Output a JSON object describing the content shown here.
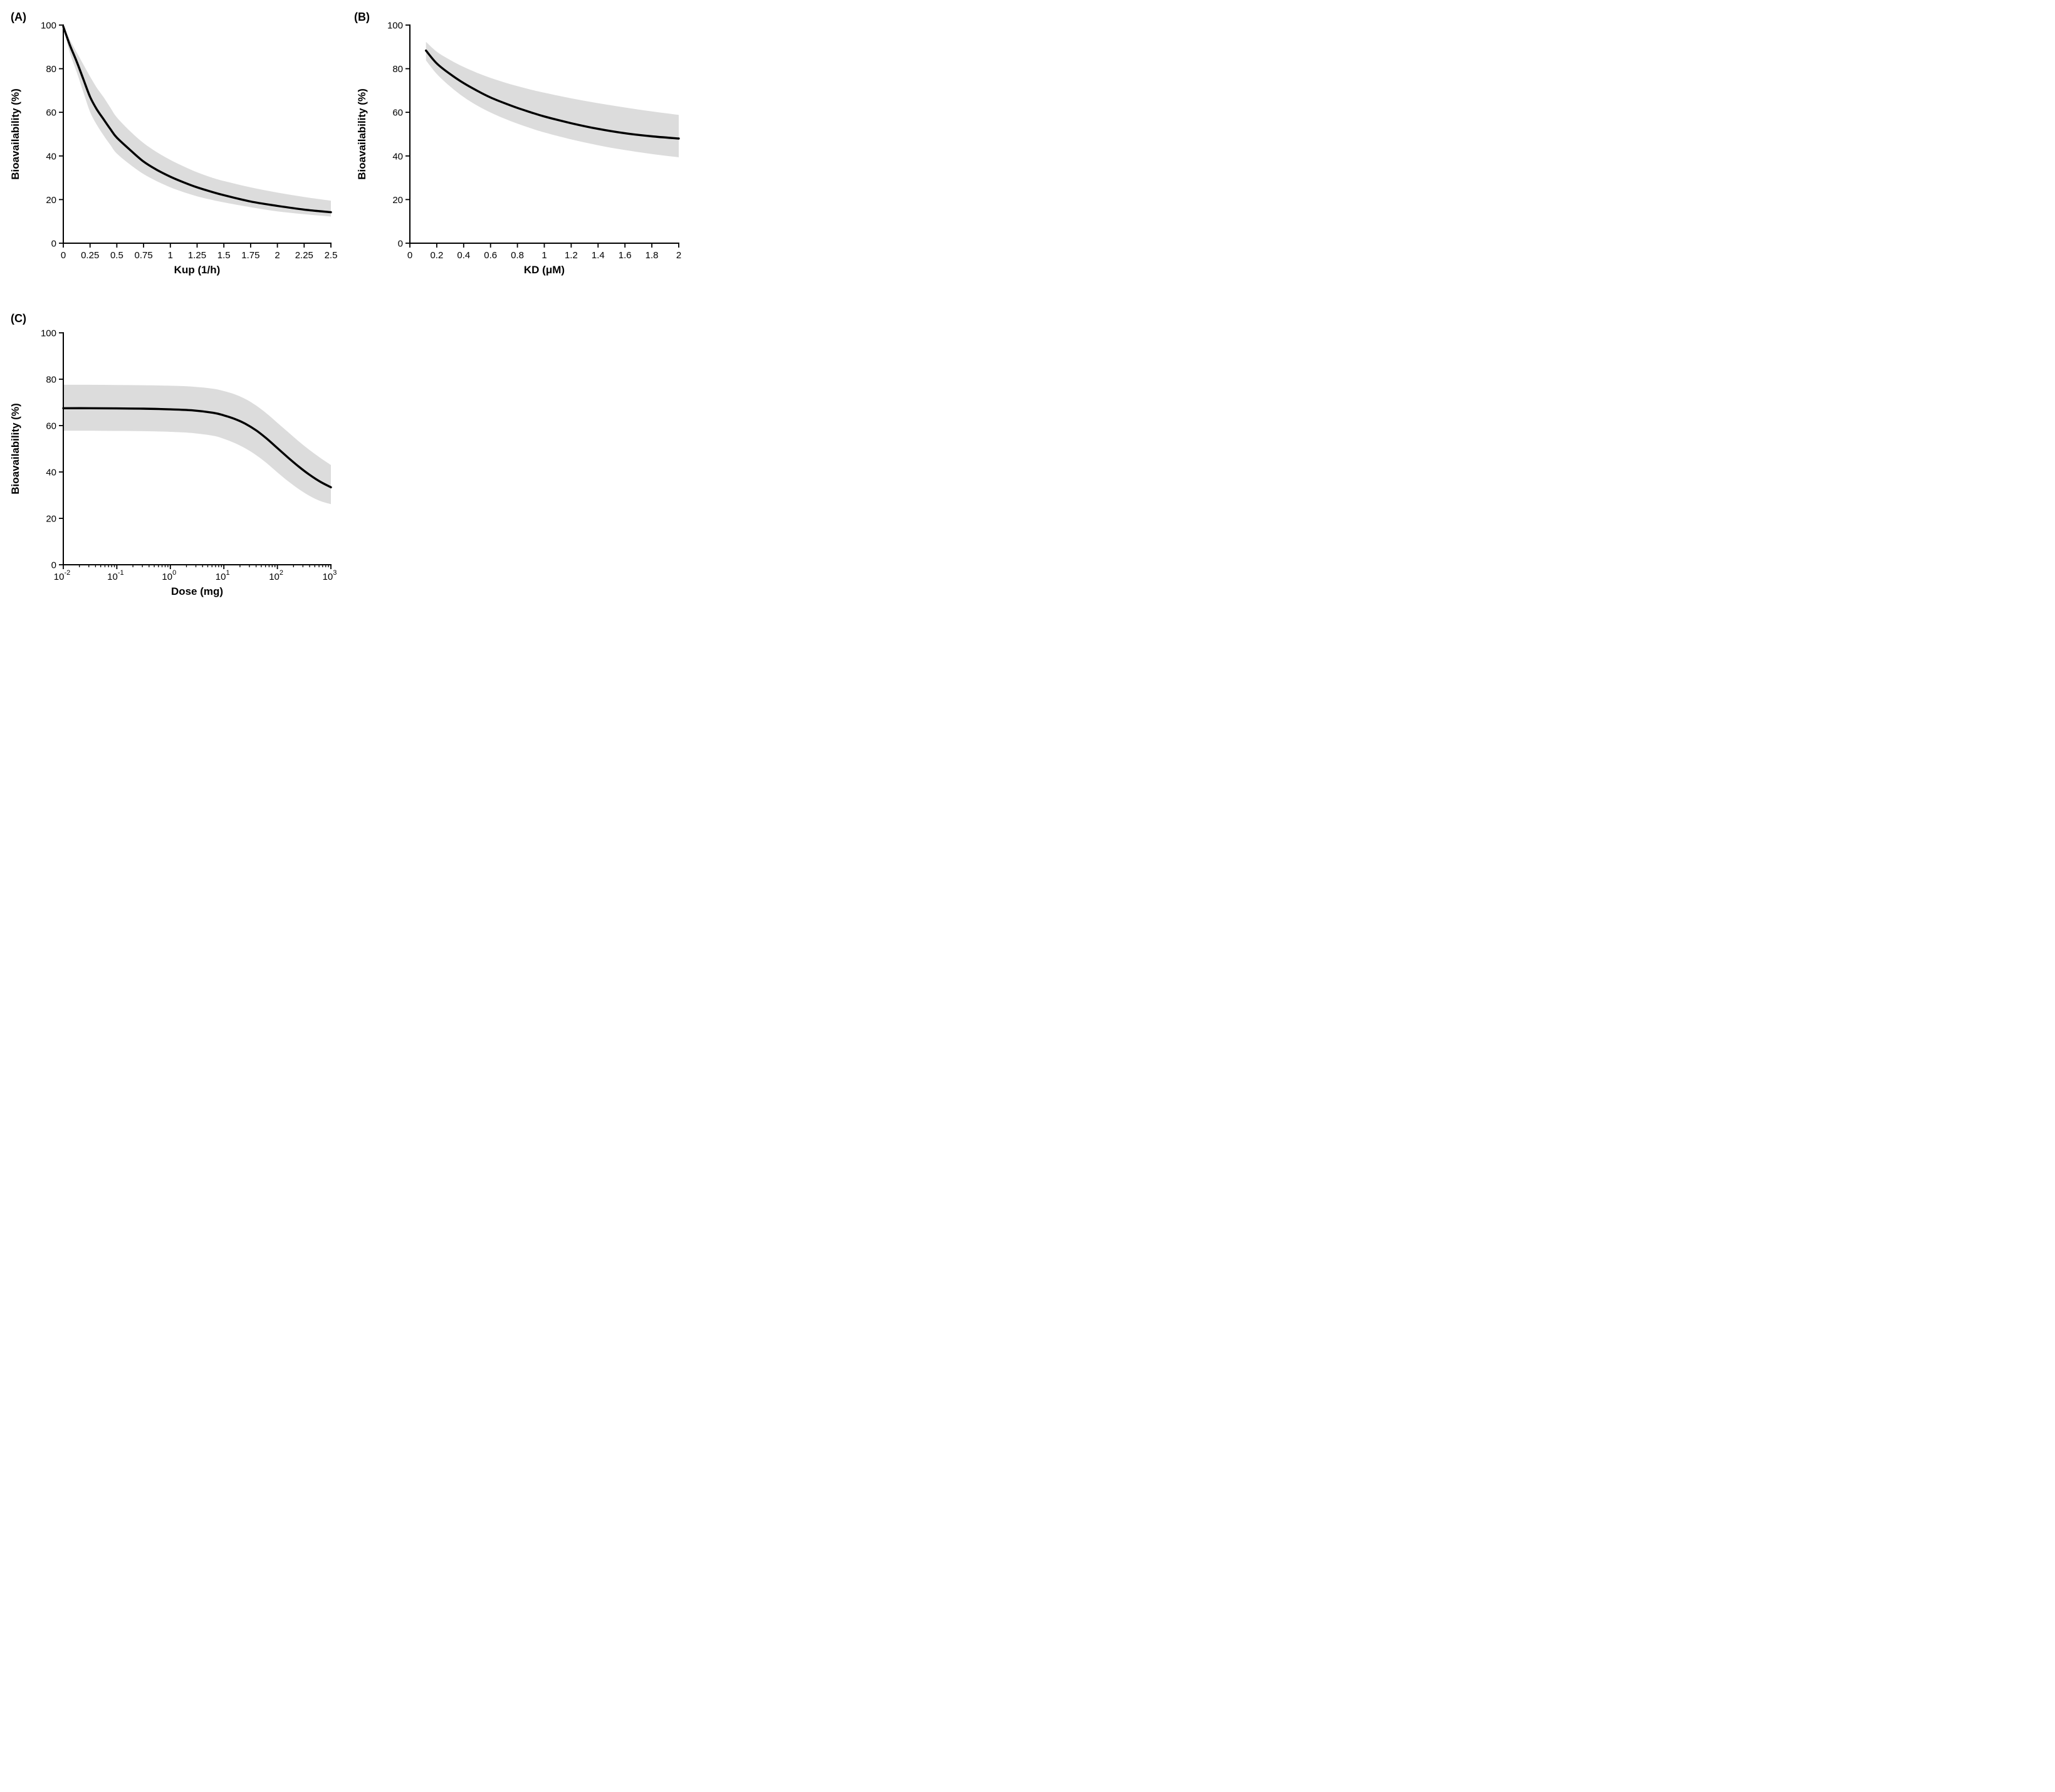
{
  "page": {
    "background": "#ffffff"
  },
  "chart_data": [
    {
      "id": "A",
      "panel_label": "(A)",
      "type": "line",
      "xlabel": "Kup (1/h)",
      "ylabel": "Bioavailability (%)",
      "xscale": "linear",
      "xlim": [
        0,
        2.5
      ],
      "ylim": [
        0,
        100
      ],
      "grid": false,
      "legend": "none",
      "line_color": "#000000",
      "band_color": "#DCDCDC",
      "xticks": [
        {
          "v": 0,
          "label": "0"
        },
        {
          "v": 0.25,
          "label": "0.25"
        },
        {
          "v": 0.5,
          "label": "0.5"
        },
        {
          "v": 0.75,
          "label": "0.75"
        },
        {
          "v": 1,
          "label": "1"
        },
        {
          "v": 1.25,
          "label": "1.25"
        },
        {
          "v": 1.5,
          "label": "1.5"
        },
        {
          "v": 1.75,
          "label": "1.75"
        },
        {
          "v": 2,
          "label": "2"
        },
        {
          "v": 2.25,
          "label": "2.25"
        },
        {
          "v": 2.5,
          "label": "2.5"
        }
      ],
      "yticks": [
        {
          "v": 0,
          "label": "0"
        },
        {
          "v": 20,
          "label": "20"
        },
        {
          "v": 40,
          "label": "40"
        },
        {
          "v": 60,
          "label": "60"
        },
        {
          "v": 80,
          "label": "80"
        },
        {
          "v": 100,
          "label": "100"
        }
      ],
      "series": [
        {
          "name": "predicted-bioavailability",
          "x": [
            0,
            0.06,
            0.125,
            0.19,
            0.25,
            0.31,
            0.375,
            0.44,
            0.5,
            0.625,
            0.75,
            0.875,
            1,
            1.125,
            1.25,
            1.375,
            1.5,
            1.75,
            2,
            2.25,
            2.5
          ],
          "y": [
            99.3,
            91,
            83.3,
            74.8,
            67.1,
            61.6,
            56.9,
            52.3,
            48.4,
            42.7,
            37.4,
            33.6,
            30.5,
            27.9,
            25.6,
            23.7,
            22,
            19.1,
            17.1,
            15.4,
            14.2
          ]
        }
      ],
      "band": {
        "name": "uncertainty-band",
        "x": [
          0,
          0.06,
          0.125,
          0.19,
          0.25,
          0.31,
          0.375,
          0.44,
          0.5,
          0.625,
          0.75,
          0.875,
          1,
          1.125,
          1.25,
          1.375,
          1.5,
          1.75,
          2,
          2.25,
          2.5
        ],
        "upper": [
          99.6,
          93.5,
          87.5,
          81.7,
          76.4,
          71.5,
          67,
          62.1,
          57.7,
          51.3,
          45.9,
          41.7,
          38.2,
          35.2,
          32.5,
          30.3,
          28.5,
          25.6,
          23.2,
          21.2,
          19.5
        ],
        "lower": [
          99,
          87.5,
          78.5,
          68.8,
          60.2,
          54.5,
          49.5,
          45,
          41.1,
          36,
          31.7,
          28.4,
          25.6,
          23.4,
          21.5,
          20,
          18.7,
          16.5,
          14.6,
          13.3,
          12.2
        ]
      }
    },
    {
      "id": "B",
      "panel_label": "(B)",
      "type": "line",
      "xlabel": "KD (μM)",
      "ylabel": "Bioavailability (%)",
      "xscale": "linear",
      "xlim": [
        0,
        2
      ],
      "ylim": [
        0,
        100
      ],
      "grid": false,
      "legend": "none",
      "line_color": "#000000",
      "band_color": "#DCDCDC",
      "xticks": [
        {
          "v": 0,
          "label": "0"
        },
        {
          "v": 0.2,
          "label": "0.2"
        },
        {
          "v": 0.4,
          "label": "0.4"
        },
        {
          "v": 0.6,
          "label": "0.6"
        },
        {
          "v": 0.8,
          "label": "0.8"
        },
        {
          "v": 1,
          "label": "1"
        },
        {
          "v": 1.2,
          "label": "1.2"
        },
        {
          "v": 1.4,
          "label": "1.4"
        },
        {
          "v": 1.6,
          "label": "1.6"
        },
        {
          "v": 1.8,
          "label": "1.8"
        },
        {
          "v": 2,
          "label": "2"
        }
      ],
      "yticks": [
        {
          "v": 0,
          "label": "0"
        },
        {
          "v": 20,
          "label": "20"
        },
        {
          "v": 40,
          "label": "40"
        },
        {
          "v": 60,
          "label": "60"
        },
        {
          "v": 80,
          "label": "80"
        },
        {
          "v": 100,
          "label": "100"
        }
      ],
      "series": [
        {
          "name": "predicted-bioavailability",
          "x": [
            0.12,
            0.2,
            0.3,
            0.4,
            0.5,
            0.6,
            0.7,
            0.8,
            0.9,
            1,
            1.2,
            1.4,
            1.6,
            1.8,
            2
          ],
          "y": [
            88.3,
            82.4,
            77.5,
            73.4,
            69.9,
            66.8,
            64.3,
            62,
            60,
            58.1,
            55,
            52.4,
            50.4,
            49,
            48
          ]
        }
      ],
      "band": {
        "name": "uncertainty-band",
        "x": [
          0.12,
          0.2,
          0.3,
          0.4,
          0.5,
          0.6,
          0.7,
          0.8,
          0.9,
          1,
          1.2,
          1.4,
          1.6,
          1.8,
          2
        ],
        "upper": [
          92.3,
          87.8,
          84,
          80.8,
          78.1,
          75.8,
          73.8,
          72,
          70.4,
          69,
          66.4,
          64.2,
          62.2,
          60.4,
          58.8
        ],
        "lower": [
          83.8,
          77.6,
          71.8,
          67,
          63.1,
          59.9,
          57.2,
          54.8,
          52.7,
          50.8,
          47.6,
          44.9,
          42.7,
          40.9,
          39.4
        ]
      }
    },
    {
      "id": "C",
      "panel_label": "(C)",
      "type": "line",
      "xlabel": "Dose (mg)",
      "ylabel": "Bioavailability (%)",
      "xscale": "log10",
      "xlim": [
        -2,
        3
      ],
      "ylim": [
        0,
        100
      ],
      "grid": false,
      "legend": "none",
      "line_color": "#000000",
      "band_color": "#DCDCDC",
      "xticks": [
        {
          "v": -2,
          "base": "10",
          "exp": "-2"
        },
        {
          "v": -1,
          "base": "10",
          "exp": "-1"
        },
        {
          "v": 0,
          "base": "10",
          "exp": "0"
        },
        {
          "v": 1,
          "base": "10",
          "exp": "1"
        },
        {
          "v": 2,
          "base": "10",
          "exp": "2"
        },
        {
          "v": 3,
          "base": "10",
          "exp": "3"
        }
      ],
      "yticks": [
        {
          "v": 0,
          "label": "0"
        },
        {
          "v": 20,
          "label": "20"
        },
        {
          "v": 40,
          "label": "40"
        },
        {
          "v": 60,
          "label": "60"
        },
        {
          "v": 80,
          "label": "80"
        },
        {
          "v": 100,
          "label": "100"
        }
      ],
      "series": [
        {
          "name": "predicted-bioavailability",
          "x": [
            -2,
            -1.5,
            -1,
            -0.5,
            0,
            0.4,
            0.8,
            1,
            1.2,
            1.4,
            1.6,
            1.8,
            2,
            2.2,
            2.4,
            2.6,
            2.8,
            3
          ],
          "y": [
            67.5,
            67.5,
            67.4,
            67.3,
            67,
            66.6,
            65.5,
            64.4,
            62.9,
            60.8,
            58,
            54.4,
            50.3,
            46.2,
            42.3,
            38.8,
            35.8,
            33.4
          ]
        }
      ],
      "band": {
        "name": "uncertainty-band",
        "x": [
          -2,
          -1.5,
          -1,
          -0.5,
          0,
          0.4,
          0.8,
          1,
          1.2,
          1.4,
          1.6,
          1.8,
          2,
          2.2,
          2.4,
          2.6,
          2.8,
          3
        ],
        "upper": [
          77.6,
          77.6,
          77.5,
          77.4,
          77.2,
          76.8,
          75.9,
          74.9,
          73.5,
          71.5,
          68.7,
          65.2,
          61.2,
          57.2,
          53.2,
          49.5,
          46.1,
          43
        ],
        "lower": [
          57.8,
          57.8,
          57.7,
          57.6,
          57.3,
          56.8,
          55.6,
          54.3,
          52.5,
          50.2,
          47.3,
          43.8,
          39.8,
          36,
          32.6,
          29.7,
          27.5,
          26.1
        ]
      }
    }
  ]
}
